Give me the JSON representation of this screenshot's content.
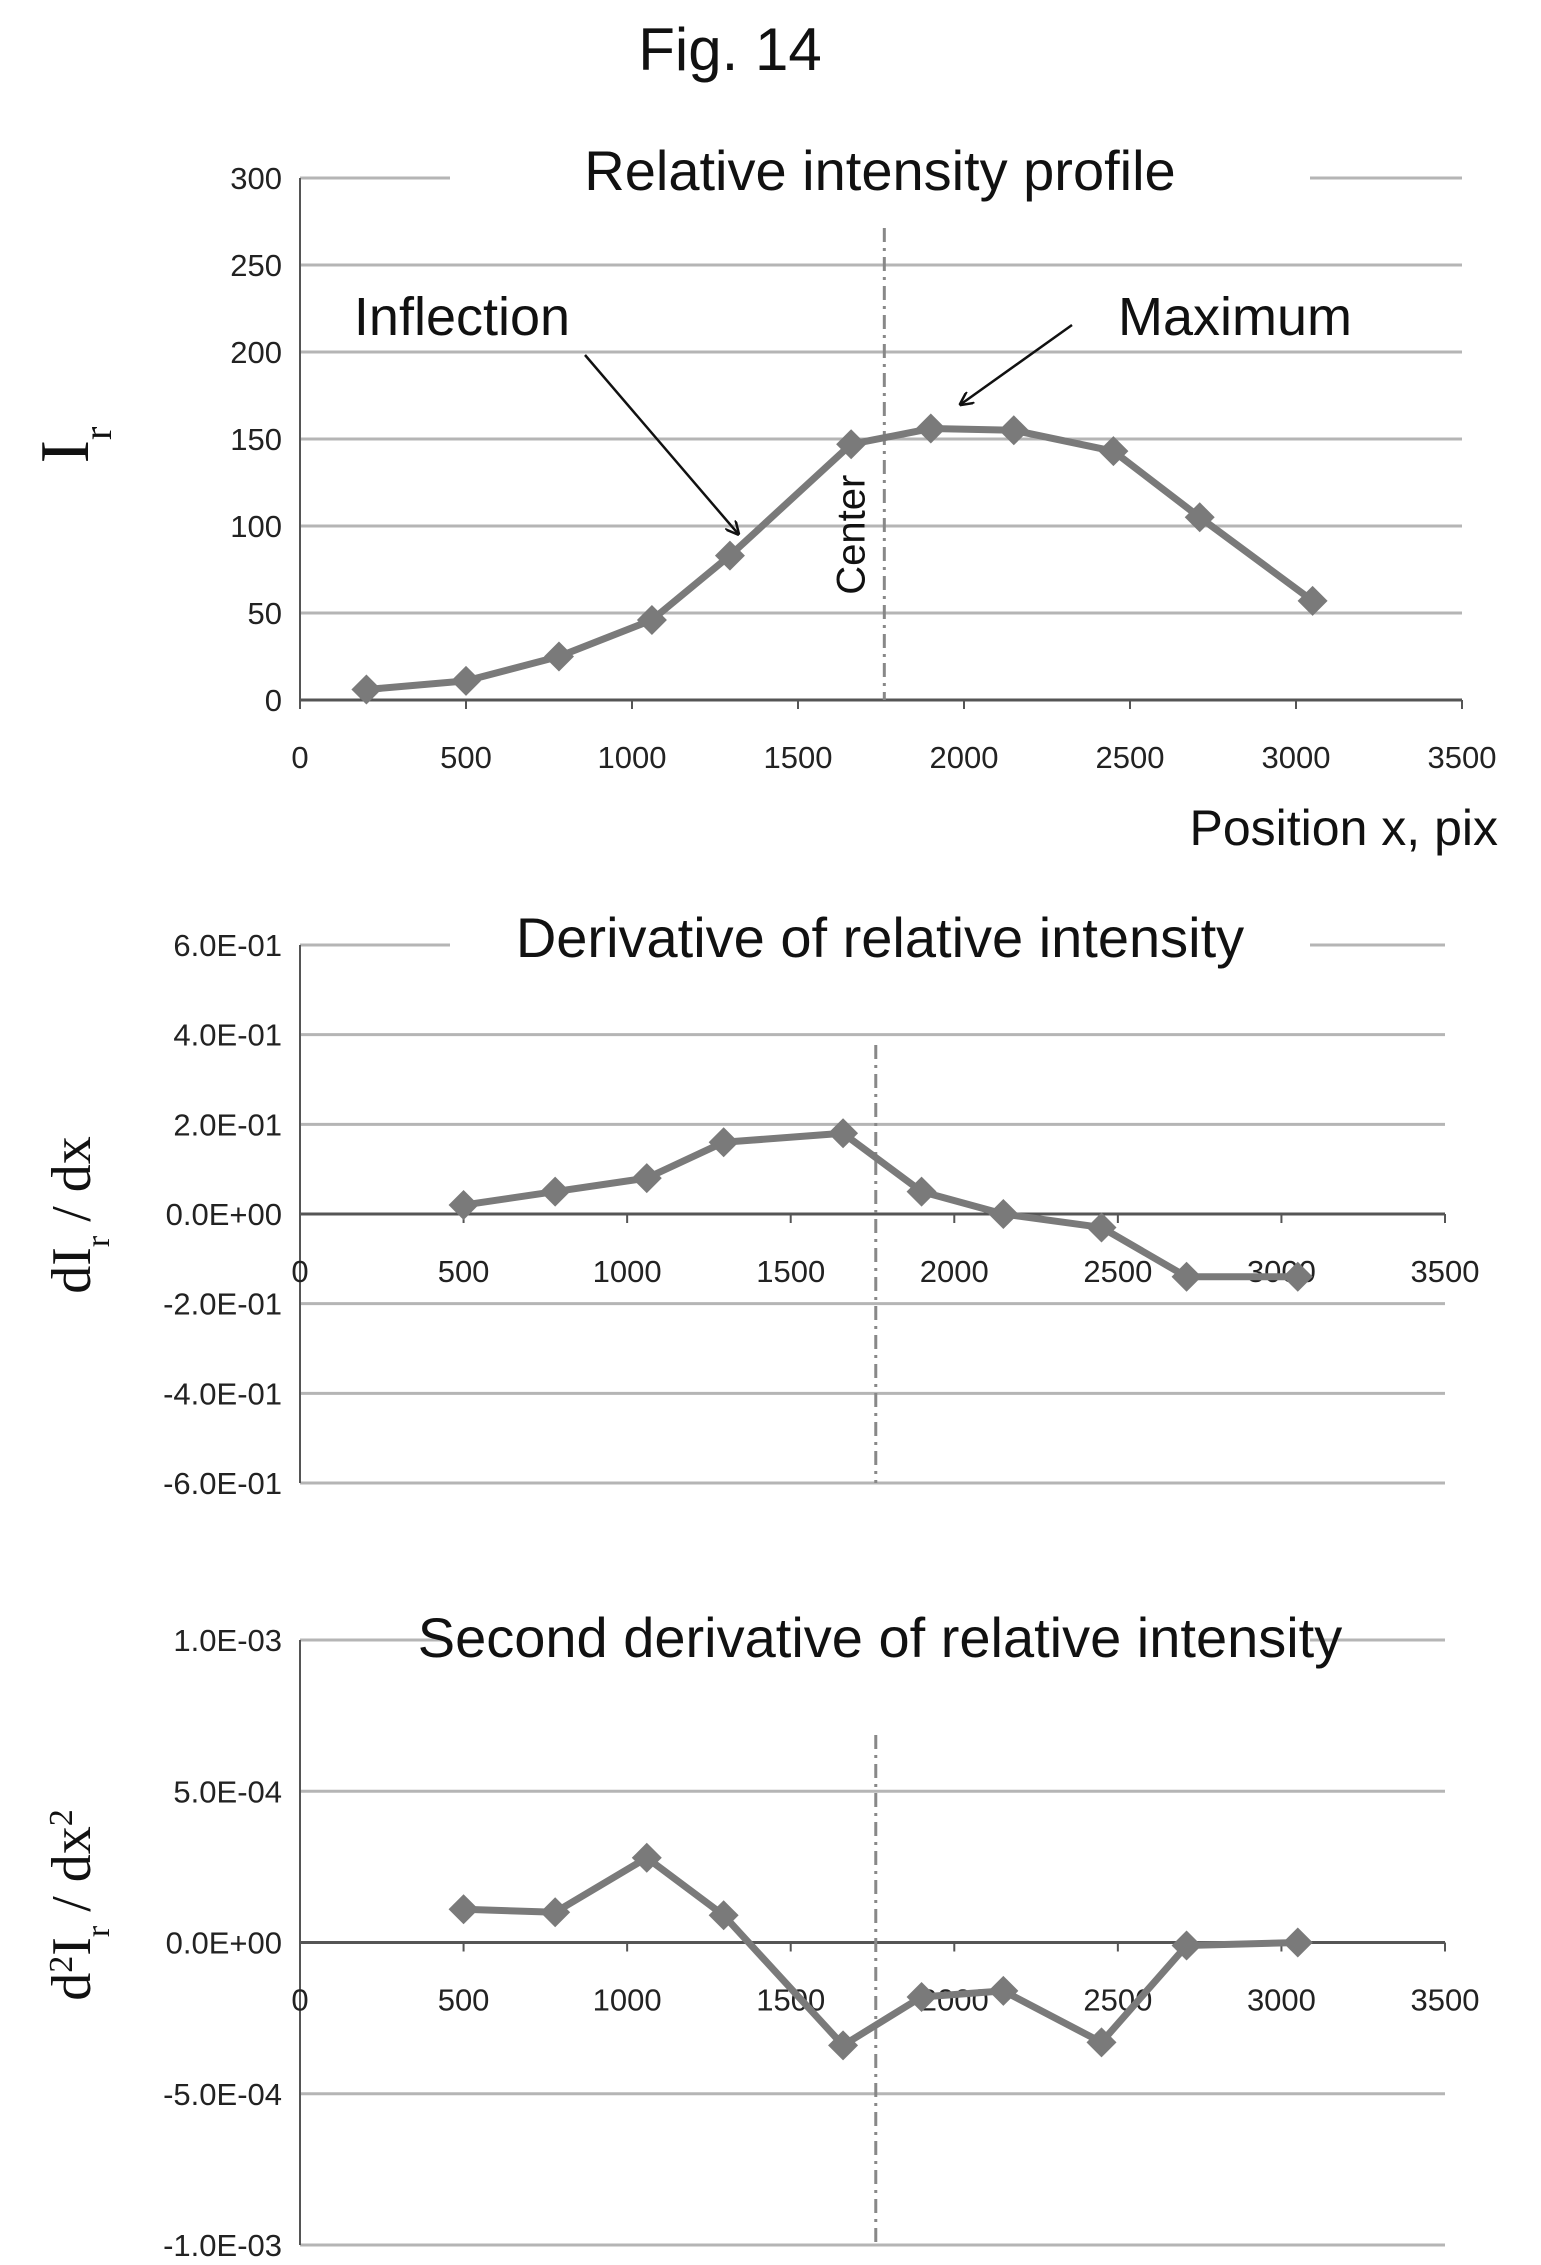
{
  "figure_title": "Fig. 14",
  "colors": {
    "series": "#7a7a7a",
    "gridline": "#b5b5b5",
    "axis": "#555555",
    "center_line": "#888888",
    "text": "#111111",
    "background": "#ffffff"
  },
  "chart_data": [
    {
      "type": "line",
      "title": "Relative intensity profile",
      "xlabel": "Position x, pix",
      "ylabel": "I_r",
      "ylabel_main": "I",
      "ylabel_sub": "r",
      "xlim": [
        0,
        3500
      ],
      "ylim": [
        0,
        300
      ],
      "xticks": [
        0,
        500,
        1000,
        1500,
        2000,
        2500,
        3000,
        3500
      ],
      "yticks": [
        0,
        50,
        100,
        150,
        200,
        250,
        300
      ],
      "ytick_labels": [
        "0",
        "50",
        "100",
        "150",
        "200",
        "250",
        "300"
      ],
      "grid": "horizontal",
      "marker": "diamond",
      "center_x": 1760,
      "center_label": "Center",
      "annotations": [
        {
          "text": "Inflection",
          "target": [
            1295,
            83
          ]
        },
        {
          "text": "Maximum",
          "target": [
            2015,
            162
          ]
        }
      ],
      "series": [
        {
          "x": [
            200,
            500,
            780,
            1060,
            1295,
            1660,
            1900,
            2150,
            2450,
            2710,
            3050
          ],
          "y": [
            6,
            11,
            25,
            46,
            83,
            147,
            156,
            155,
            143,
            105,
            57
          ]
        }
      ]
    },
    {
      "type": "line",
      "title": "Derivative of relative intensity",
      "xlabel": "",
      "ylabel": "dI_r / dx",
      "ylabel_main": "dI",
      "ylabel_sub": "r",
      "ylabel_tail": " / dx",
      "xlim": [
        0,
        3500
      ],
      "ylim": [
        -0.6,
        0.6
      ],
      "xticks": [
        0,
        500,
        1000,
        1500,
        2000,
        2500,
        3000,
        3500
      ],
      "yticks": [
        -0.6,
        -0.4,
        -0.2,
        0,
        0.2,
        0.4,
        0.6
      ],
      "ytick_labels": [
        "-6.0E-01",
        "-4.0E-01",
        "-2.0E-01",
        "0.0E+00",
        "2.0E-01",
        "4.0E-01",
        "6.0E-01"
      ],
      "grid": "horizontal",
      "marker": "diamond",
      "center_x": 1760,
      "series": [
        {
          "x": [
            500,
            780,
            1060,
            1295,
            1660,
            1900,
            2150,
            2450,
            2710,
            3050
          ],
          "y": [
            0.02,
            0.05,
            0.08,
            0.16,
            0.18,
            0.05,
            0.0,
            -0.03,
            -0.14,
            -0.14
          ]
        }
      ]
    },
    {
      "type": "line",
      "title": "Second derivative of relative intensity",
      "xlabel": "",
      "ylabel": "d²I_r / dx²",
      "ylabel_main": "d",
      "ylabel_sup": "2",
      "ylabel_mid": "I",
      "ylabel_sub": "r",
      "ylabel_tail": " / dx",
      "ylabel_tail_sup": "2",
      "xlim": [
        0,
        3500
      ],
      "ylim": [
        -0.001,
        0.001
      ],
      "xticks": [
        0,
        500,
        1000,
        1500,
        2000,
        2500,
        3000,
        3500
      ],
      "yticks": [
        -0.001,
        -0.0005,
        0,
        0.0005,
        0.001
      ],
      "ytick_labels": [
        "-1.0E-03",
        "-5.0E-04",
        "0.0E+00",
        "5.0E-04",
        "1.0E-03"
      ],
      "grid": "horizontal",
      "marker": "diamond",
      "center_x": 1760,
      "series": [
        {
          "x": [
            500,
            780,
            1060,
            1295,
            1660,
            1900,
            2150,
            2450,
            2710,
            3050
          ],
          "y": [
            0.00011,
            0.0001,
            0.00028,
            9e-05,
            -0.00034,
            -0.00018,
            -0.00016,
            -0.00033,
            -1e-05,
            0.0
          ]
        }
      ]
    }
  ]
}
